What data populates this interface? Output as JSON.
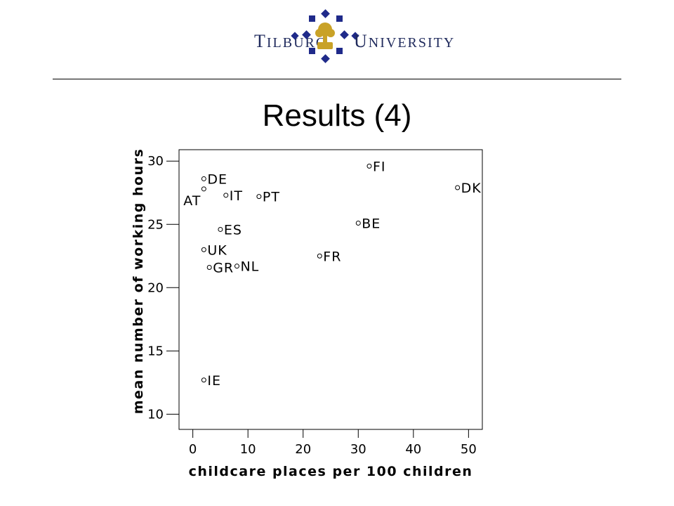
{
  "header": {
    "logo_left": "TILBURG",
    "logo_right": "UNIVERSITY",
    "logo_left_cap": "T",
    "logo_left_rest": "ILBURG",
    "logo_right_cap": "U",
    "logo_right_rest": "NIVERSITY",
    "logo_colors": {
      "navy": "#1f2a8a",
      "gold": "#c9a227"
    }
  },
  "slide": {
    "title": "Results (4)"
  },
  "chart_data": {
    "type": "scatter",
    "title": "",
    "xlabel": "childcare places per 100 children",
    "ylabel": "mean number of working hours",
    "xlim": [
      -2.5,
      52.5
    ],
    "ylim": [
      8.8,
      30.9
    ],
    "xticks": [
      0,
      10,
      20,
      30,
      40,
      50
    ],
    "yticks": [
      10,
      15,
      20,
      25,
      30
    ],
    "grid": false,
    "points": [
      {
        "label": "FI",
        "x": 32,
        "y": 29.6,
        "labelPos": "right"
      },
      {
        "label": "DE",
        "x": 2,
        "y": 28.6,
        "labelPos": "right"
      },
      {
        "label": "DK",
        "x": 48,
        "y": 27.9,
        "labelPos": "right"
      },
      {
        "label": "AT",
        "x": 2,
        "y": 27.8,
        "labelPos": "below-left"
      },
      {
        "label": "IT",
        "x": 6,
        "y": 27.3,
        "labelPos": "right"
      },
      {
        "label": "PT",
        "x": 12,
        "y": 27.2,
        "labelPos": "right"
      },
      {
        "label": "BE",
        "x": 30,
        "y": 25.1,
        "labelPos": "right"
      },
      {
        "label": "ES",
        "x": 5,
        "y": 24.6,
        "labelPos": "right"
      },
      {
        "label": "UK",
        "x": 2,
        "y": 23.0,
        "labelPos": "right"
      },
      {
        "label": "FR",
        "x": 23,
        "y": 22.5,
        "labelPos": "right"
      },
      {
        "label": "GR",
        "x": 3,
        "y": 21.6,
        "labelPos": "right"
      },
      {
        "label": "NL",
        "x": 8,
        "y": 21.7,
        "labelPos": "right"
      },
      {
        "label": "IE",
        "x": 2,
        "y": 12.7,
        "labelPos": "right"
      }
    ]
  }
}
